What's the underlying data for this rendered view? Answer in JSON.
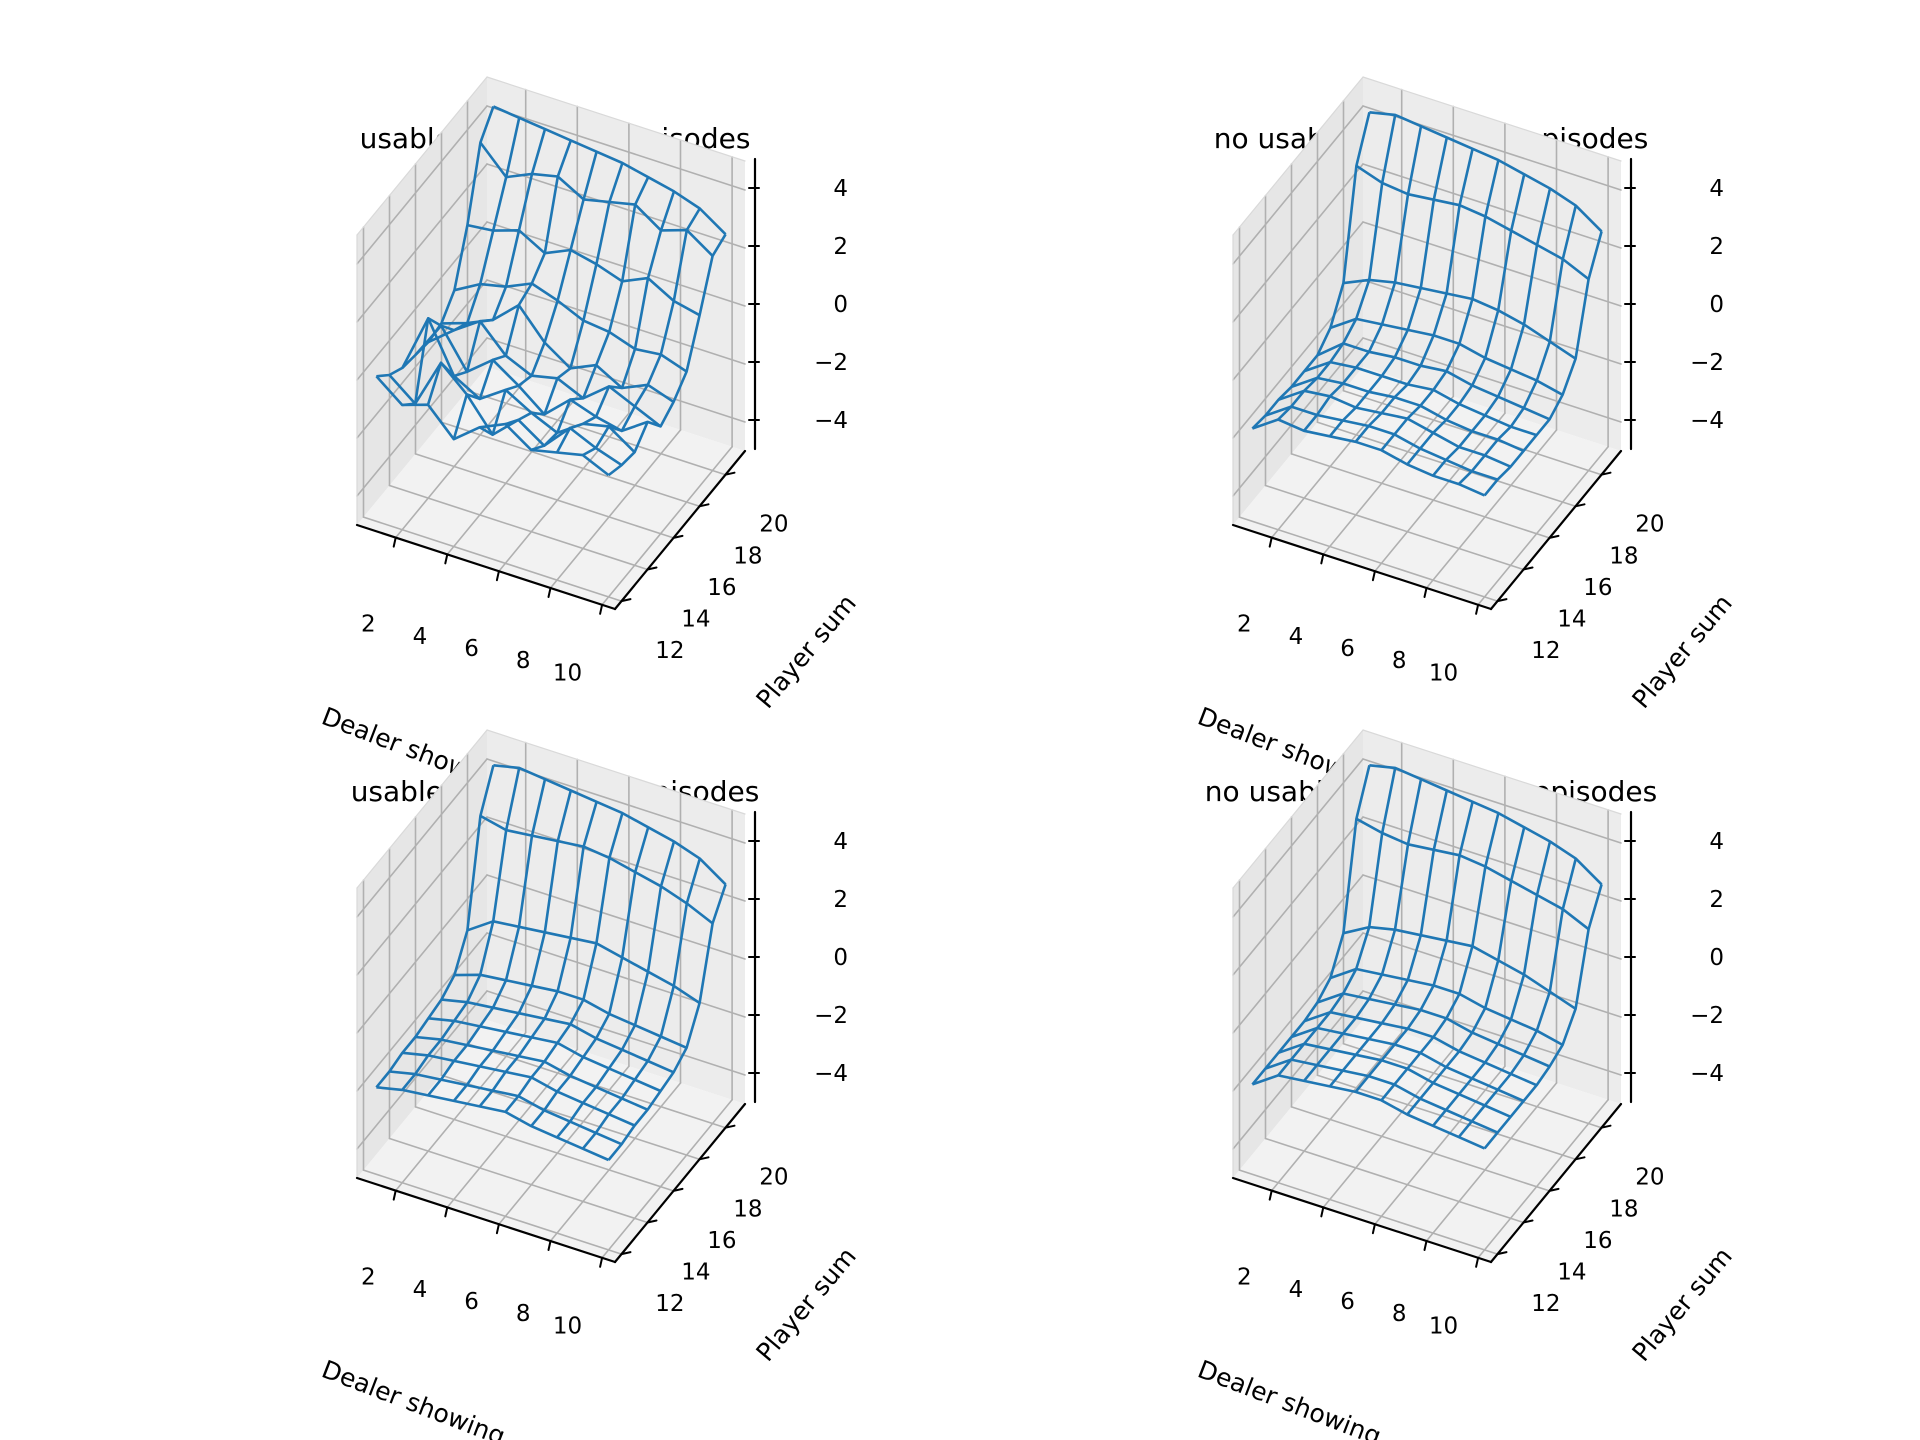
{
  "colors": {
    "surface": "#1f77b4",
    "pane_left": "#e6e6e6",
    "pane_right": "#ececec",
    "pane_floor": "#f2f2f2",
    "grid": "#b0b0b0",
    "axis_line": "#000000",
    "text": "#000000"
  },
  "chart_data": [
    {
      "type": "surface-3d-wireframe",
      "title": "usable ace, 10000 episodes",
      "xlabel": "Dealer showing",
      "ylabel": "Player sum",
      "zlabel": "",
      "x": [
        1,
        2,
        3,
        4,
        5,
        6,
        7,
        8,
        9,
        10
      ],
      "y": [
        12,
        13,
        14,
        15,
        16,
        17,
        18,
        19,
        20,
        21
      ],
      "xticks": [
        "2",
        "4",
        "6",
        "8",
        "10"
      ],
      "yticks": [
        "12",
        "14",
        "16",
        "18",
        "20"
      ],
      "zticks": [
        "−4",
        "−2",
        "0",
        "2",
        "4"
      ],
      "zlim": [
        -5,
        5
      ],
      "grid": true,
      "z": [
        [
          0.0,
          -0.7,
          -0.4,
          -1.3,
          -0.6,
          -0.2,
          -0.8,
          -0.6,
          -0.4,
          -0.8
        ],
        [
          -0.5,
          -1.2,
          0.5,
          -0.3,
          -1.4,
          -0.6,
          -1.2,
          -0.3,
          -0.7,
          -1.0
        ],
        [
          -0.8,
          1.2,
          -0.5,
          -1.0,
          -0.4,
          -0.9,
          -1.3,
          -0.7,
          -0.5,
          -1.1
        ],
        [
          -0.9,
          0.4,
          -0.9,
          -0.2,
          -0.8,
          -1.5,
          -0.7,
          -1.0,
          -1.2,
          -0.6
        ],
        [
          -1.0,
          -0.3,
          0.3,
          -0.6,
          -1.0,
          -0.8,
          -1.2,
          -0.5,
          -0.9,
          -1.3
        ],
        [
          -0.9,
          -0.6,
          -0.2,
          0.6,
          -0.4,
          -1.0,
          -0.6,
          -1.1,
          -0.7,
          -1.0
        ],
        [
          -0.3,
          0.2,
          0.4,
          0.8,
          0.5,
          0.1,
          0.0,
          -0.3,
          -0.2,
          -0.5
        ],
        [
          1.4,
          1.5,
          1.8,
          1.3,
          1.7,
          1.5,
          1.2,
          1.6,
          1.1,
          0.9
        ],
        [
          3.7,
          2.8,
          3.2,
          3.4,
          2.9,
          3.1,
          3.3,
          2.7,
          3.0,
          2.4
        ],
        [
          4.4,
          4.3,
          4.2,
          4.1,
          4.0,
          3.9,
          3.7,
          3.5,
          3.2,
          2.6
        ]
      ]
    },
    {
      "type": "surface-3d-wireframe",
      "title": "no usable ace, 10000 episodes",
      "xlabel": "Dealer showing",
      "ylabel": "Player sum",
      "zlabel": "",
      "x": [
        1,
        2,
        3,
        4,
        5,
        6,
        7,
        8,
        9,
        10
      ],
      "y": [
        12,
        13,
        14,
        15,
        16,
        17,
        18,
        19,
        20,
        21
      ],
      "xticks": [
        "2",
        "4",
        "6",
        "8",
        "10"
      ],
      "yticks": [
        "12",
        "14",
        "16",
        "18",
        "20"
      ],
      "zticks": [
        "−4",
        "−2",
        "0",
        "2",
        "4"
      ],
      "zlim": [
        -5,
        5
      ],
      "grid": true,
      "z": [
        [
          -1.8,
          -1.2,
          -1.3,
          -1.2,
          -1.1,
          -1.1,
          -1.3,
          -1.4,
          -1.4,
          -1.5
        ],
        [
          -1.9,
          -1.3,
          -1.3,
          -1.2,
          -1.1,
          -1.1,
          -1.3,
          -1.4,
          -1.5,
          -1.5
        ],
        [
          -1.9,
          -1.3,
          -1.2,
          -1.3,
          -1.2,
          -1.1,
          -1.3,
          -1.5,
          -1.5,
          -1.6
        ],
        [
          -2.0,
          -1.4,
          -1.3,
          -1.3,
          -1.2,
          -1.2,
          -1.4,
          -1.5,
          -1.5,
          -1.6
        ],
        [
          -2.0,
          -1.4,
          -1.3,
          -1.3,
          -1.3,
          -1.2,
          -1.4,
          -1.5,
          -1.6,
          -1.6
        ],
        [
          -2.0,
          -1.3,
          -1.3,
          -1.2,
          -1.2,
          -1.1,
          -1.3,
          -1.4,
          -1.5,
          -1.6
        ],
        [
          -1.6,
          -1.0,
          -0.9,
          -0.8,
          -0.7,
          -0.7,
          -0.9,
          -1.0,
          -1.1,
          -1.3
        ],
        [
          -0.6,
          -0.2,
          0.0,
          0.1,
          0.2,
          0.3,
          0.2,
          0.0,
          -0.3,
          -0.6
        ],
        [
          2.9,
          2.6,
          2.5,
          2.6,
          2.7,
          2.6,
          2.4,
          2.2,
          2.0,
          1.6
        ],
        [
          4.2,
          4.4,
          4.3,
          4.2,
          4.1,
          4.0,
          3.8,
          3.6,
          3.3,
          2.7
        ]
      ]
    },
    {
      "type": "surface-3d-wireframe",
      "title": "usable ace, 500000 episodes",
      "xlabel": "Dealer showing",
      "ylabel": "Player sum",
      "zlabel": "",
      "x": [
        1,
        2,
        3,
        4,
        5,
        6,
        7,
        8,
        9,
        10
      ],
      "y": [
        12,
        13,
        14,
        15,
        16,
        17,
        18,
        19,
        20,
        21
      ],
      "xticks": [
        "2",
        "4",
        "6",
        "8",
        "10"
      ],
      "yticks": [
        "12",
        "14",
        "16",
        "18",
        "20"
      ],
      "zticks": [
        "−4",
        "−2",
        "0",
        "2",
        "4"
      ],
      "zlim": [
        -5,
        5
      ],
      "grid": true,
      "z": [
        [
          -2.0,
          -1.8,
          -1.7,
          -1.6,
          -1.5,
          -1.4,
          -1.6,
          -1.7,
          -1.8,
          -1.9
        ],
        [
          -2.0,
          -1.8,
          -1.7,
          -1.6,
          -1.5,
          -1.4,
          -1.6,
          -1.7,
          -1.8,
          -1.9
        ],
        [
          -1.9,
          -1.7,
          -1.6,
          -1.5,
          -1.4,
          -1.3,
          -1.5,
          -1.6,
          -1.7,
          -1.8
        ],
        [
          -1.9,
          -1.7,
          -1.6,
          -1.5,
          -1.4,
          -1.3,
          -1.5,
          -1.6,
          -1.7,
          -1.8
        ],
        [
          -1.8,
          -1.6,
          -1.5,
          -1.4,
          -1.3,
          -1.2,
          -1.4,
          -1.5,
          -1.6,
          -1.7
        ],
        [
          -1.7,
          -1.5,
          -1.4,
          -1.3,
          -1.2,
          -1.1,
          -1.3,
          -1.4,
          -1.5,
          -1.6
        ],
        [
          -1.4,
          -1.1,
          -1.0,
          -0.9,
          -0.8,
          -0.8,
          -1.0,
          -1.1,
          -1.2,
          -1.3
        ],
        [
          -0.4,
          0.2,
          0.3,
          0.4,
          0.5,
          0.6,
          0.4,
          0.2,
          0.0,
          -0.3
        ],
        [
          3.0,
          2.8,
          2.9,
          3.0,
          3.1,
          3.0,
          2.8,
          2.6,
          2.3,
          1.9
        ],
        [
          4.2,
          4.4,
          4.3,
          4.2,
          4.1,
          4.0,
          3.8,
          3.6,
          3.3,
          2.7
        ]
      ]
    },
    {
      "type": "surface-3d-wireframe",
      "title": "no usable ace, 500000 episodes",
      "xlabel": "Dealer showing",
      "ylabel": "Player sum",
      "zlabel": "",
      "x": [
        1,
        2,
        3,
        4,
        5,
        6,
        7,
        8,
        9,
        10
      ],
      "y": [
        12,
        13,
        14,
        15,
        16,
        17,
        18,
        19,
        20,
        21
      ],
      "xticks": [
        "2",
        "4",
        "6",
        "8",
        "10"
      ],
      "yticks": [
        "12",
        "14",
        "16",
        "18",
        "20"
      ],
      "zticks": [
        "−4",
        "−2",
        "0",
        "2",
        "4"
      ],
      "zlim": [
        -5,
        5
      ],
      "grid": true,
      "z": [
        [
          -1.9,
          -1.3,
          -1.2,
          -1.1,
          -1.0,
          -1.0,
          -1.2,
          -1.3,
          -1.4,
          -1.5
        ],
        [
          -1.9,
          -1.3,
          -1.2,
          -1.1,
          -1.0,
          -1.0,
          -1.2,
          -1.3,
          -1.4,
          -1.5
        ],
        [
          -1.9,
          -1.3,
          -1.2,
          -1.1,
          -1.0,
          -1.0,
          -1.2,
          -1.3,
          -1.4,
          -1.5
        ],
        [
          -1.9,
          -1.3,
          -1.2,
          -1.1,
          -1.0,
          -1.0,
          -1.2,
          -1.3,
          -1.4,
          -1.5
        ],
        [
          -1.9,
          -1.3,
          -1.2,
          -1.1,
          -1.0,
          -1.0,
          -1.2,
          -1.3,
          -1.4,
          -1.5
        ],
        [
          -1.8,
          -1.2,
          -1.1,
          -1.0,
          -0.9,
          -0.9,
          -1.1,
          -1.2,
          -1.3,
          -1.4
        ],
        [
          -1.5,
          -0.9,
          -0.8,
          -0.7,
          -0.6,
          -0.6,
          -0.8,
          -0.9,
          -1.0,
          -1.2
        ],
        [
          -0.5,
          0.0,
          0.2,
          0.3,
          0.4,
          0.5,
          0.3,
          0.1,
          -0.2,
          -0.5
        ],
        [
          2.9,
          2.7,
          2.6,
          2.7,
          2.8,
          2.7,
          2.5,
          2.3,
          2.1,
          1.7
        ],
        [
          4.2,
          4.4,
          4.3,
          4.2,
          4.1,
          4.0,
          3.8,
          3.6,
          3.3,
          2.7
        ]
      ]
    }
  ]
}
